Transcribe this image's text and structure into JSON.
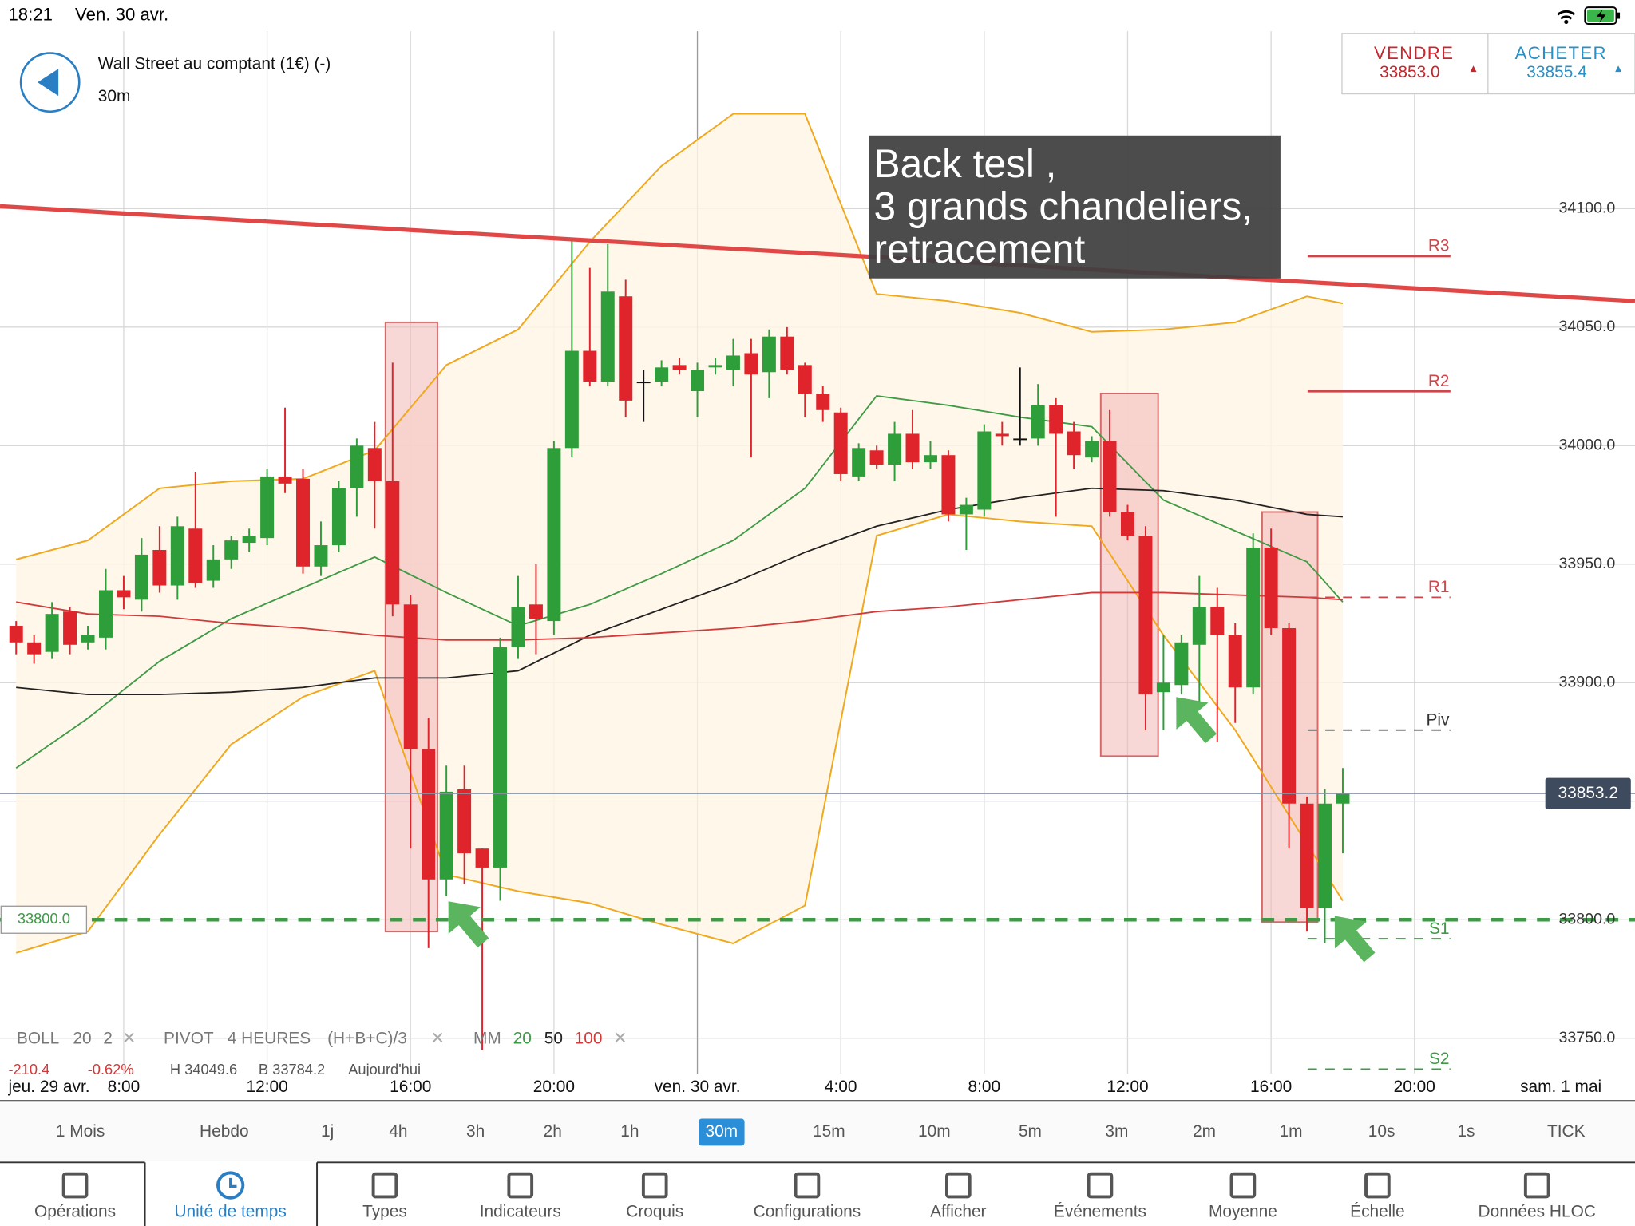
{
  "status_bar": {
    "time": "18:21",
    "date": "Ven. 30 avr."
  },
  "instrument": {
    "name": "Wall Street au comptant (1€) (-)",
    "timeframe": "30m"
  },
  "quote": {
    "sell_label": "VENDRE",
    "sell_price": "33853.0",
    "buy_label": "ACHETER",
    "buy_price": "33855.4"
  },
  "chart_data": {
    "type": "candlestick",
    "x": [
      10,
      11,
      12,
      13,
      14,
      15,
      16,
      17,
      18,
      19,
      20,
      21,
      22,
      23,
      24,
      25,
      26,
      27,
      28,
      29,
      30,
      31,
      32,
      33,
      34,
      35,
      36,
      37,
      38,
      39,
      40,
      41,
      42,
      43,
      44,
      45,
      46,
      47,
      48,
      49,
      50,
      51,
      52,
      53,
      54,
      55,
      56,
      57,
      58,
      59,
      60,
      61,
      62,
      63,
      64,
      65,
      66,
      67,
      68,
      69,
      70,
      71,
      72,
      73,
      74,
      75,
      76,
      77,
      78,
      79,
      80,
      81,
      82,
      83,
      84
    ],
    "open": [
      33924,
      33917,
      33913,
      33930,
      33917,
      33919,
      33939,
      33935,
      33956,
      33941,
      33965,
      33943,
      33952,
      33959,
      33961,
      33987,
      33986,
      33949,
      33958,
      33982,
      33999,
      33985,
      33933,
      33872,
      33817,
      33855,
      33830,
      33822,
      33915,
      33933,
      33926,
      33999,
      34040,
      34027,
      34063,
      34027,
      34027,
      34034,
      34023,
      34033,
      34032,
      34039,
      34031,
      34046,
      34034,
      34022,
      34014,
      33987,
      33998,
      33992,
      34005,
      33993,
      33996,
      33971,
      33973,
      34005,
      34003,
      34003,
      34017,
      34006,
      33995,
      34002,
      33972,
      33962,
      33896,
      33899,
      33916,
      33932,
      33920,
      33898,
      33957,
      33923,
      33849,
      33805,
      33849
    ],
    "high": [
      33926,
      33920,
      33934,
      33932,
      33924,
      33948,
      33945,
      33961,
      33966,
      33970,
      33989,
      33958,
      33962,
      33965,
      33990,
      34016,
      33990,
      33968,
      33985,
      34003,
      34010,
      34035,
      33937,
      33885,
      33865,
      33865,
      33830,
      33919,
      33945,
      33950,
      34002,
      34087,
      34075,
      34085,
      34070,
      34032,
      34036,
      34037,
      34035,
      34037,
      34045,
      34045,
      34049,
      34050,
      34035,
      34025,
      34016,
      34001,
      34000,
      34010,
      34015,
      34002,
      33998,
      33978,
      34009,
      34010,
      34033,
      34026,
      34020,
      34010,
      34004,
      34015,
      33975,
      33966,
      33920,
      33920,
      33945,
      33940,
      33925,
      33963,
      33965,
      33925,
      33852,
      33855,
      33864
    ],
    "low": [
      33912,
      33908,
      33910,
      33912,
      33914,
      33914,
      33931,
      33930,
      33938,
      33935,
      33940,
      33940,
      33948,
      33955,
      33958,
      33980,
      33946,
      33945,
      33955,
      33970,
      33965,
      33928,
      33830,
      33788,
      33810,
      33815,
      33745,
      33808,
      33910,
      33912,
      33920,
      33995,
      34025,
      34025,
      34012,
      34010,
      34025,
      34030,
      34012,
      34030,
      34025,
      33995,
      34020,
      34030,
      34012,
      34010,
      33985,
      33985,
      33990,
      33985,
      33990,
      33990,
      33968,
      33956,
      33970,
      34000,
      34000,
      34000,
      33970,
      33990,
      33993,
      33970,
      33960,
      33880,
      33880,
      33895,
      33890,
      33875,
      33883,
      33895,
      33920,
      33830,
      33795,
      33790,
      33828
    ],
    "close": [
      33917,
      33912,
      33929,
      33916,
      33920,
      33939,
      33936,
      33954,
      33941,
      33966,
      33942,
      33952,
      33960,
      33962,
      33987,
      33984,
      33949,
      33958,
      33982,
      34000,
      33985,
      33933,
      33872,
      33817,
      33854,
      33828,
      33822,
      33915,
      33932,
      33927,
      33999,
      34040,
      34027,
      34065,
      34019,
      34027,
      34033,
      34032,
      34032,
      34034,
      34038,
      34030,
      34046,
      34032,
      34022,
      34015,
      33988,
      33999,
      33992,
      34005,
      33993,
      33996,
      33971,
      33975,
      34006,
      34004,
      34003,
      34017,
      34005,
      33996,
      34002,
      33972,
      33962,
      33895,
      33900,
      33917,
      33932,
      33920,
      33898,
      33957,
      33923,
      33849,
      33805,
      33849,
      33853.2
    ],
    "up_color": "#2e9e3a",
    "down_color": "#e0242b",
    "xlim": [
      9.1,
      100.3
    ],
    "xticks": [
      {
        "value": 16,
        "label": "8:00"
      },
      {
        "value": 24,
        "label": "12:00"
      },
      {
        "value": 32,
        "label": "16:00"
      },
      {
        "value": 40,
        "label": "20:00"
      },
      {
        "value": 48,
        "label": "ven. 30 avr."
      },
      {
        "value": 56,
        "label": "4:00"
      },
      {
        "value": 64,
        "label": "8:00"
      },
      {
        "value": 72,
        "label": "12:00"
      },
      {
        "value": 80,
        "label": "16:00"
      },
      {
        "value": 88,
        "label": "20:00"
      }
    ],
    "ylim": [
      33735,
      34188
    ],
    "yticks": [
      {
        "value": 33750,
        "label": "33750.0"
      },
      {
        "value": 33800,
        "label": "33800.0"
      },
      {
        "value": 33850,
        "label": "33850.0"
      },
      {
        "value": 33900,
        "label": "33900.0"
      },
      {
        "value": 33950,
        "label": "33950.0"
      },
      {
        "value": 34000,
        "label": "34000.0"
      },
      {
        "value": 34050,
        "label": "34050.0"
      },
      {
        "value": 34100,
        "label": "34100.0"
      }
    ],
    "date_labels": {
      "start": "jeu. 29 avr.",
      "end": "sam. 1 mai"
    },
    "grid": true,
    "line_x": [
      10,
      14,
      18,
      22,
      26,
      30,
      34,
      38,
      42,
      46,
      50,
      54,
      58,
      62,
      66,
      70,
      74,
      78,
      82,
      84
    ],
    "bollinger": {
      "label": "BOLL",
      "period": 20,
      "deviation": 2,
      "color": "#f0a81c",
      "upper": [
        33952,
        33960,
        33982,
        33985,
        33986,
        33998,
        34034,
        34049,
        34086,
        34118,
        34140,
        34140,
        34064,
        34061,
        34056,
        34048,
        34049,
        34052,
        34063,
        34060
      ],
      "lower": [
        33786,
        33795,
        33836,
        33874,
        33894,
        33905,
        33819,
        33812,
        33807,
        33798,
        33790,
        33806,
        33962,
        33971,
        33968,
        33966,
        33920,
        33880,
        33832,
        33808
      ]
    },
    "moving_averages": {
      "label": "MM",
      "items": [
        {
          "period": 20,
          "color": "#3d9a45",
          "values": [
            33864,
            33885,
            33909,
            33927,
            33940,
            33953,
            33938,
            33924,
            33933,
            33946,
            33960,
            33982,
            34021,
            34017,
            34012,
            34008,
            33977,
            33964,
            33951,
            33934
          ]
        },
        {
          "period": 50,
          "color": "#222222",
          "values": [
            33898,
            33895,
            33895,
            33896,
            33898,
            33902,
            33902,
            33905,
            33920,
            33931,
            33942,
            33955,
            33966,
            33973,
            33978,
            33982,
            33981,
            33977,
            33971,
            33970
          ]
        },
        {
          "period": 100,
          "color": "#d23a3a",
          "values": [
            33934,
            33929,
            33928,
            33925,
            33923,
            33920,
            33918,
            33918,
            33919,
            33921,
            33923,
            33926,
            33930,
            33932,
            33935,
            33938,
            33938,
            33937,
            33936,
            33935
          ]
        }
      ]
    },
    "pivot": {
      "label": "PIVOT",
      "period": "4 HEURES",
      "formula": "(H+B+C)/3",
      "levels": [
        {
          "name": "R3",
          "value": 34080,
          "color": "#d0454a",
          "dashed": false
        },
        {
          "name": "R2",
          "value": 34023,
          "color": "#d0454a",
          "dashed": false
        },
        {
          "name": "R1",
          "value": 33936,
          "color": "#d0454a",
          "dashed": true
        },
        {
          "name": "Piv",
          "value": 33880,
          "color": "#333333",
          "dashed": true
        },
        {
          "name": "S1",
          "value": 33792,
          "color": "#3d9a45",
          "dashed": true
        },
        {
          "name": "S2",
          "value": 33737,
          "color": "#3d9a45",
          "dashed": true
        }
      ]
    },
    "trendline": {
      "x": [
        9.1,
        100.3
      ],
      "values": [
        34101,
        34061
      ],
      "color": "#e04848"
    },
    "support": {
      "value": 33800,
      "label": "33800.0",
      "color": "#3d9a45"
    },
    "last_price": 33853.2,
    "highlights": [
      {
        "x": [
          30.6,
          33.5
        ],
        "y": [
          33795,
          34052
        ]
      },
      {
        "x": [
          70.5,
          73.7
        ],
        "y": [
          33869,
          34022
        ]
      },
      {
        "x": [
          79.5,
          82.6
        ],
        "y": [
          33799,
          33972
        ]
      }
    ],
    "annotation": {
      "lines": [
        "Back tesl ,",
        "3 grands chandeliers,",
        "retracement"
      ]
    },
    "stats": {
      "change": "-210.4",
      "change_pct": "-0.62%",
      "high": "H 34049.6",
      "low": "B 33784.2",
      "period": "Aujourd'hui"
    }
  },
  "timeframes": {
    "items": [
      "1 Mois",
      "Hebdo",
      "1j",
      "4h",
      "3h",
      "2h",
      "1h",
      "30m",
      "15m",
      "10m",
      "5m",
      "3m",
      "2m",
      "1m",
      "10s",
      "1s",
      "TICK"
    ],
    "selected": 7
  },
  "tabs": {
    "items": [
      "Opérations",
      "Unité de temps",
      "Types",
      "Indicateurs",
      "Croquis",
      "Configurations",
      "Afficher",
      "Événements",
      "Moyenne",
      "Échelle",
      "Données HLOC"
    ],
    "selected": 1
  }
}
